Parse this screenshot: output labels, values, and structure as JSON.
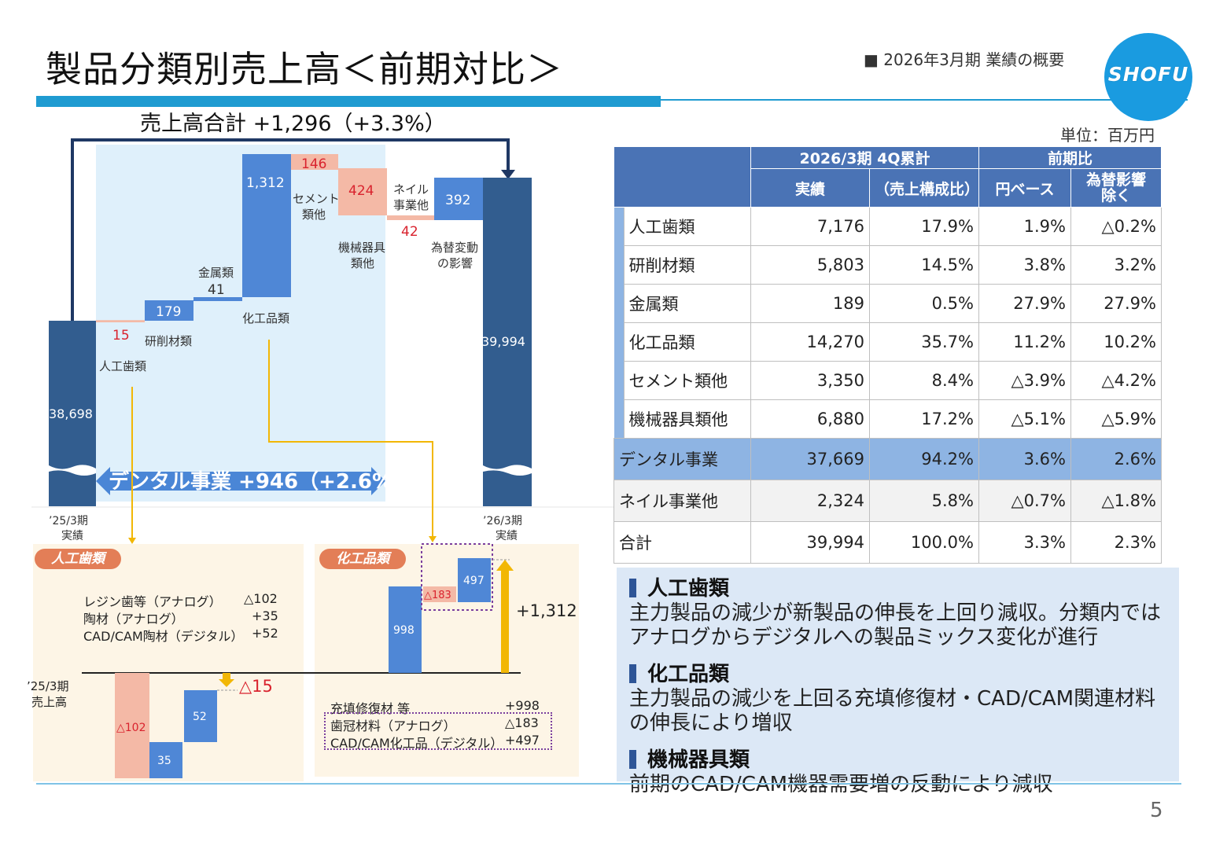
{
  "header": {
    "title": "製品分類別売上高＜前期対比＞",
    "section": "■ 2026年3月期 業績の概要",
    "logo_text": "SHOFU",
    "unit": "単位：百万円",
    "page_number": "5"
  },
  "waterfall": {
    "total_title": "売上高合計 +1,296（+3.3%）",
    "dental_banner": "デンタル事業 +946（+2.6%）",
    "start_label_line1": "’25/3期",
    "start_label_line2": "実績",
    "end_label_line1": "’26/3期",
    "end_label_line2": "実績"
  },
  "chart_data": {
    "type": "waterfall",
    "start": {
      "label": "’25/3期 実績",
      "value": 38698
    },
    "steps": [
      {
        "category": "人工歯類",
        "value": 15,
        "direction": "down",
        "color": "#f4b9a6"
      },
      {
        "category": "研削材類",
        "value": 179,
        "direction": "up",
        "color": "#4f87d6"
      },
      {
        "category": "金属類",
        "value": 41,
        "direction": "up",
        "color": "#4f87d6"
      },
      {
        "category": "化工品類",
        "value": 1312,
        "direction": "up",
        "color": "#4f87d6"
      },
      {
        "category": "セメント類他",
        "value": 146,
        "direction": "down",
        "color": "#f4b9a6"
      },
      {
        "category": "機械器具類他",
        "value": 424,
        "direction": "down",
        "color": "#f4b9a6"
      },
      {
        "category": "ネイル事業他",
        "value": 42,
        "direction": "down",
        "color": "#f4b9a6"
      },
      {
        "category": "為替変動の影響",
        "value": 392,
        "direction": "up",
        "color": "#4f87d6"
      }
    ],
    "end": {
      "label": "’26/3期 実績",
      "value": 39994
    },
    "value_labels": [
      "38,698",
      "15",
      "179",
      "41",
      "1,312",
      "146",
      "424",
      "42",
      "392",
      "39,994"
    ],
    "category_labels": {
      "jinko": "人工歯類",
      "kensaku": "研削材類",
      "kinzoku": "金属類",
      "kako": "化工品類",
      "cement_1": "セメント",
      "cement_2": "類他",
      "kikai_1": "機械器具",
      "kikai_2": "類他",
      "nail_1": "ネイル",
      "nail_2": "事業他",
      "fx_1": "為替変動",
      "fx_2": "の影響"
    }
  },
  "panel_jinko": {
    "pill": "人工歯類",
    "rows": [
      {
        "label": "レジン歯等（アナログ）",
        "value": "△102"
      },
      {
        "label": "陶材（アナログ）",
        "value": "+35"
      },
      {
        "label": "CAD/CAM陶材（デジタル）",
        "value": "+52"
      }
    ],
    "base_label_1": "’25/3期",
    "base_label_2": "売上高",
    "bars": [
      "△102",
      "35",
      "52"
    ],
    "delta": "△15"
  },
  "panel_kako": {
    "pill": "化工品類",
    "bars": [
      "998",
      "△183",
      "497"
    ],
    "total": "+1,312",
    "rows": [
      {
        "label": "充填修復材 等",
        "value": "+998"
      },
      {
        "label": "歯冠材料（アナログ）",
        "value": "△183"
      },
      {
        "label": "CAD/CAM化工品（デジタル）",
        "value": "+497"
      }
    ]
  },
  "table": {
    "head_period": "2026/3期 4Q累計",
    "head_compare": "前期比",
    "head_actual": "実績",
    "head_share": "（売上構成比）",
    "head_yen": "円ベース",
    "head_fx_1": "為替影響",
    "head_fx_2": "除く",
    "rows": [
      {
        "name": "人工歯類",
        "actual": "7,176",
        "share": "17.9%",
        "yen": "1.9%",
        "fx": "△0.2%"
      },
      {
        "name": "研削材類",
        "actual": "5,803",
        "share": "14.5%",
        "yen": "3.8%",
        "fx": "3.2%"
      },
      {
        "name": "金属類",
        "actual": "189",
        "share": "0.5%",
        "yen": "27.9%",
        "fx": "27.9%"
      },
      {
        "name": "化工品類",
        "actual": "14,270",
        "share": "35.7%",
        "yen": "11.2%",
        "fx": "10.2%"
      },
      {
        "name": "セメント類他",
        "actual": "3,350",
        "share": "8.4%",
        "yen": "△3.9%",
        "fx": "△4.2%"
      },
      {
        "name": "機械器具類他",
        "actual": "6,880",
        "share": "17.2%",
        "yen": "△5.1%",
        "fx": "△5.9%"
      }
    ],
    "dental": {
      "name": "デンタル事業",
      "actual": "37,669",
      "share": "94.2%",
      "yen": "3.6%",
      "fx": "2.6%"
    },
    "nail": {
      "name": "ネイル事業他",
      "actual": "2,324",
      "share": "5.8%",
      "yen": "△0.7%",
      "fx": "△1.8%"
    },
    "total": {
      "name": "合計",
      "actual": "39,994",
      "share": "100.0%",
      "yen": "3.3%",
      "fx": "2.3%"
    }
  },
  "notes": [
    {
      "heading": "人工歯類",
      "body": "主力製品の減少が新製品の伸長を上回り減収。分類内ではアナログからデジタルへの製品ミックス変化が進行"
    },
    {
      "heading": "化工品類",
      "body": "主力製品の減少を上回る充填修復材・CAD/CAM関連材料の伸長により増収"
    },
    {
      "heading": "機械器具類",
      "body": "前期のCAD/CAM機器需要増の反動により減収"
    }
  ]
}
